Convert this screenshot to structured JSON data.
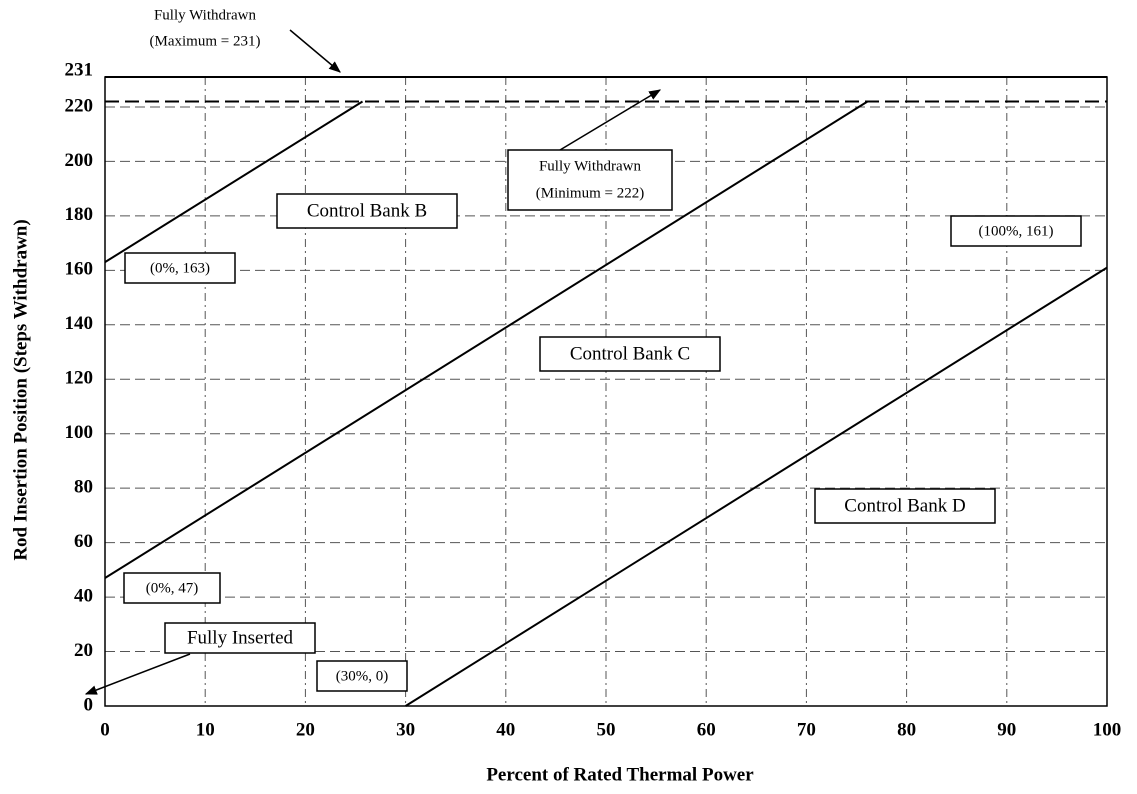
{
  "chart_data": {
    "type": "line",
    "x_label": "Percent of Rated Thermal Power",
    "y_label": "Rod Insertion Position (Steps Withdrawn)",
    "xlim": [
      0,
      100
    ],
    "xticks": [
      0,
      10,
      20,
      30,
      40,
      50,
      60,
      70,
      80,
      90,
      100
    ],
    "ylim": [
      0,
      231
    ],
    "yticks": [
      0,
      20,
      40,
      60,
      80,
      100,
      120,
      140,
      160,
      180,
      200,
      220,
      231
    ],
    "grid": true,
    "series": [
      {
        "name": "Control Bank B",
        "color": "#000000",
        "x": [
          0,
          25.7
        ],
        "values": [
          163,
          222
        ]
      },
      {
        "name": "Control Bank C",
        "color": "#000000",
        "x": [
          0,
          76.1
        ],
        "values": [
          47,
          222
        ]
      },
      {
        "name": "Control Bank D",
        "color": "#000000",
        "x": [
          30,
          100
        ],
        "values": [
          0,
          161
        ]
      }
    ],
    "reference_lines": [
      {
        "value": 231,
        "label": "Fully Withdrawn",
        "sublabel": "(Maximum = 231)",
        "style": "solid"
      },
      {
        "value": 222,
        "label": "Fully Withdrawn",
        "sublabel": "(Minimum = 222)",
        "style": "dashed"
      }
    ],
    "annotations": [
      "(0%, 163)",
      "(0%, 47)",
      "(30%, 0)",
      "(100%, 161)",
      "Fully Inserted"
    ]
  }
}
